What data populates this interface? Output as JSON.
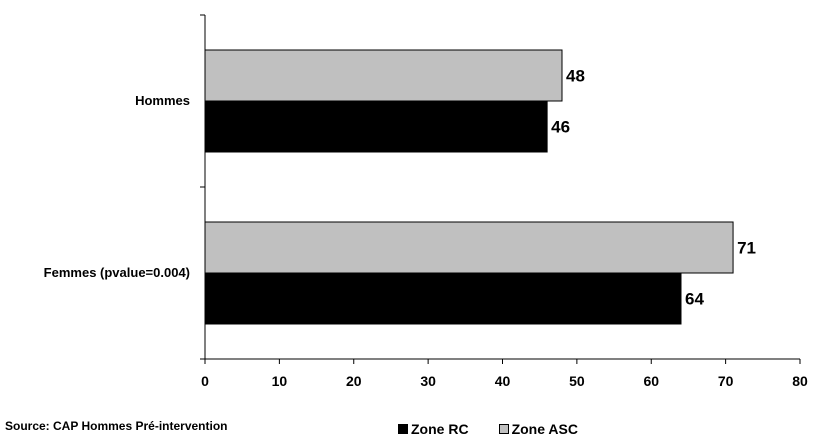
{
  "chart_data": {
    "type": "bar",
    "orientation": "horizontal",
    "categories": [
      "Hommes",
      "Femmes (pvalue=0.004)"
    ],
    "series": [
      {
        "name": "Zone ASC",
        "values": [
          48,
          71
        ],
        "color": "#c0c0c0"
      },
      {
        "name": "Zone RC",
        "values": [
          46,
          64
        ],
        "color": "#000000"
      }
    ],
    "x_ticks": [
      "0",
      "10",
      "20",
      "30",
      "40",
      "50",
      "60",
      "70",
      "80"
    ],
    "xlim": [
      0,
      80
    ],
    "grid": false,
    "legend_placement": "bottom",
    "legend_order": [
      "Zone RC",
      "Zone ASC"
    ],
    "title": "",
    "xlabel": "",
    "ylabel": ""
  },
  "source": "Source: CAP Hommes Pré-intervention"
}
